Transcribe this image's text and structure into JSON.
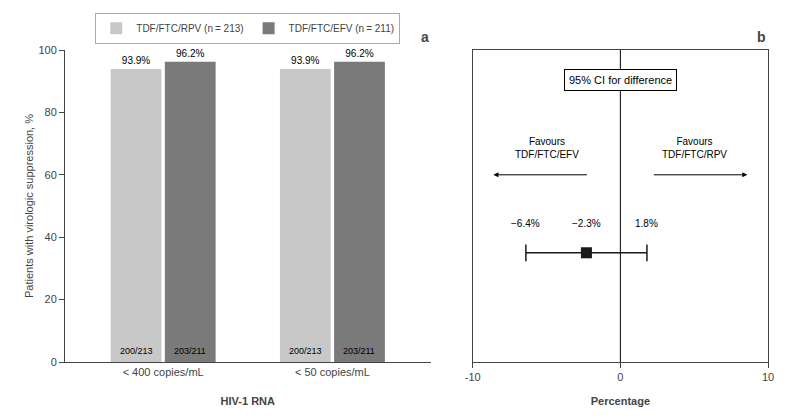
{
  "chart_data": [
    {
      "type": "bar",
      "panel_label": "a",
      "xlabel": "HIV-1 RNA",
      "ylabel": "Patients with virologic suppression, %",
      "categories": [
        "< 400 copies/mL",
        "< 50 copies/mL"
      ],
      "series": [
        {
          "name": "TDF/FTC/RPV (n = 213)",
          "color": "#c8c8c8",
          "values": [
            93.9,
            93.9
          ],
          "value_labels": [
            "93.9%",
            "93.9%"
          ],
          "inner_labels": [
            "200/213",
            "200/213"
          ]
        },
        {
          "name": "TDF/FTC/EFV (n = 211)",
          "color": "#7a7a7a",
          "values": [
            96.2,
            96.2
          ],
          "value_labels": [
            "96.2%",
            "96.2%"
          ],
          "inner_labels": [
            "203/211",
            "203/211"
          ]
        }
      ],
      "ylim": [
        0,
        100
      ],
      "yticks": [
        0,
        20,
        40,
        60,
        80,
        100
      ],
      "data_labels": true,
      "grid": false,
      "legend": "top"
    },
    {
      "type": "forest",
      "panel_label": "b",
      "xlabel": "Percentage",
      "box_label": "95% CI for difference",
      "estimate": -2.3,
      "ci_low": -6.4,
      "ci_high": 1.8,
      "value_labels": {
        "ci_low": "−6.4%",
        "estimate": "−2.3%",
        "ci_high": "1.8%"
      },
      "color": "#1a1a1a",
      "reference_line": 0,
      "annotations": [
        {
          "lines": [
            "Favours",
            "TDF/FTC/EFV"
          ],
          "direction": "left"
        },
        {
          "lines": [
            "Favours",
            "TDF/FTC/RPV"
          ],
          "direction": "right"
        }
      ],
      "xlim": [
        -10,
        10
      ],
      "xticks": [
        -10,
        0,
        10
      ],
      "tick_labels": "x",
      "grid": false
    }
  ]
}
